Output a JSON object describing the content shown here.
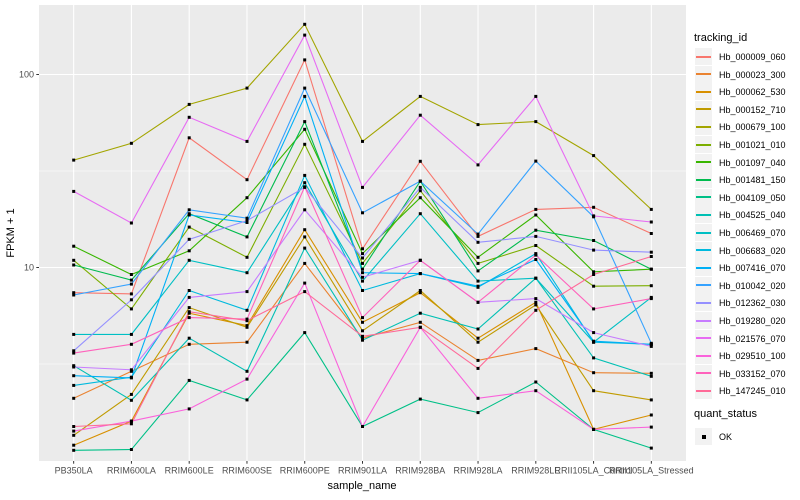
{
  "figure": {
    "description": "ggplot2 line plot of FPKM + 1 per sample for 20 transcripts"
  },
  "style": {
    "panel_bg": "#EBEBEB",
    "grid_major": "#FFFFFF",
    "grid_minor": "#F7F7F7",
    "axis_text_color": "#4D4D4D",
    "axis_title_color": "#000000",
    "tick_color": "#333333",
    "point_color": "#000000",
    "legend_key_bg": "#F2F2F2"
  },
  "legend": {
    "tracking_title": "tracking_id",
    "quant_title": "quant_status",
    "quant_label": "OK"
  },
  "axes": {
    "y_tick_labels": [
      "100",
      "10"
    ],
    "xlabel": "sample_name",
    "ylabel": "FPKM + 1"
  },
  "chart_data": {
    "type": "line",
    "title": "",
    "xlabel": "sample_name",
    "ylabel": "FPKM + 1",
    "yscale": "log10",
    "ylim": [
      1,
      229
    ],
    "y_breaks": [
      10,
      100
    ],
    "y_break_labels": [
      "10",
      "100"
    ],
    "y_minor_breaks": [
      3.162,
      31.62
    ],
    "grid": true,
    "legend_position": "right",
    "legend_title": "tracking_id",
    "point_shape": "square",
    "point_legend": {
      "title": "quant_status",
      "label": "OK"
    },
    "categories": [
      "PB350LA",
      "RRIM600LA",
      "RRIM600LE",
      "RRIM600SE",
      "RRIM600PE",
      "RRIM901LA",
      "RRIM928BA",
      "RRIM928LA",
      "RRIM928LE",
      "RRII105LA_Control",
      "RRII105LA_Stressed"
    ],
    "series": [
      {
        "name": "Hb_000009_060",
        "color": "#F8766D",
        "values": [
          7.4,
          7.3,
          47,
          28.5,
          119,
          12.5,
          35.5,
          14.5,
          20,
          20.5,
          15
        ]
      },
      {
        "name": "Hb_000023_300",
        "color": "#EA8331",
        "values": [
          2.1,
          2.9,
          4.0,
          4.1,
          10.5,
          4.3,
          5.2,
          3.3,
          3.8,
          2.85,
          2.83
        ]
      },
      {
        "name": "Hb_000062_530",
        "color": "#D89000",
        "values": [
          1.2,
          1.6,
          5.8,
          5.0,
          15.7,
          5.2,
          7.4,
          4.3,
          6.6,
          1.45,
          1.72
        ]
      },
      {
        "name": "Hb_000152_710",
        "color": "#C09B00",
        "values": [
          1.35,
          2.2,
          6.2,
          4.9,
          14.4,
          4.7,
          7.6,
          4.1,
          6.4,
          2.3,
          2.06
        ]
      },
      {
        "name": "Hb_000679_100",
        "color": "#A3A500",
        "values": [
          36,
          44,
          70,
          85,
          182,
          45,
          77,
          55,
          57,
          38,
          20
        ]
      },
      {
        "name": "Hb_001021_010",
        "color": "#7CAE00",
        "values": [
          10.9,
          6.1,
          16.2,
          11.3,
          43.5,
          10.5,
          25,
          10.5,
          13,
          8.0,
          8.05
        ]
      },
      {
        "name": "Hb_001097_040",
        "color": "#39B600",
        "values": [
          12.9,
          9.2,
          12.2,
          23,
          52,
          11.8,
          23,
          11.3,
          18.7,
          9.5,
          9.8
        ]
      },
      {
        "name": "Hb_001481_150",
        "color": "#00BB4E",
        "values": [
          10.3,
          8.6,
          19,
          14.4,
          57,
          9.8,
          28,
          9.6,
          15.6,
          13.8,
          9.8
        ]
      },
      {
        "name": "Hb_004109_050",
        "color": "#00C087",
        "values": [
          1.13,
          1.14,
          2.6,
          2.06,
          4.6,
          1.5,
          2.08,
          1.77,
          2.55,
          1.45,
          1.16
        ]
      },
      {
        "name": "Hb_004525_040",
        "color": "#00C0B4",
        "values": [
          3.1,
          2.05,
          4.3,
          2.9,
          12.6,
          4.2,
          5.8,
          4.8,
          8.8,
          3.4,
          2.73
        ]
      },
      {
        "name": "Hb_006469_070",
        "color": "#00BFC4",
        "values": [
          4.5,
          4.5,
          10.9,
          9.4,
          27.5,
          8.5,
          19,
          8.5,
          8.8,
          4.1,
          7.0
        ]
      },
      {
        "name": "Hb_006683_020",
        "color": "#00BADE",
        "values": [
          2.45,
          2.7,
          7.6,
          6.0,
          30,
          7.6,
          9.3,
          7.9,
          11.8,
          4.1,
          4.0
        ]
      },
      {
        "name": "Hb_007416_070",
        "color": "#00B0F6",
        "values": [
          2.75,
          2.68,
          18.7,
          17.1,
          77,
          9.4,
          9.3,
          8.0,
          11.0,
          4.15,
          4.0
        ]
      },
      {
        "name": "Hb_010042_020",
        "color": "#35A2FF",
        "values": [
          7.2,
          8.2,
          19.9,
          18.0,
          85,
          19.2,
          28,
          14.9,
          35.6,
          18.3,
          4.05
        ]
      },
      {
        "name": "Hb_012362_030",
        "color": "#9590FF",
        "values": [
          3.7,
          6.8,
          14,
          17.5,
          26,
          11.2,
          26,
          13.5,
          14.5,
          12.3,
          12.0
        ]
      },
      {
        "name": "Hb_019280_020",
        "color": "#C77CFF",
        "values": [
          3.05,
          2.95,
          7.0,
          7.5,
          19.9,
          8.9,
          10.9,
          6.6,
          6.9,
          4.6,
          3.9
        ]
      },
      {
        "name": "Hb_021576_070",
        "color": "#E76BF3",
        "values": [
          24.8,
          17,
          60,
          45,
          160,
          26,
          61.5,
          34,
          77,
          18.5,
          17.2
        ]
      },
      {
        "name": "Hb_029510_100",
        "color": "#FA62DB",
        "values": [
          1.42,
          1.6,
          1.85,
          2.64,
          8.3,
          1.5,
          4.9,
          2.1,
          2.3,
          1.45,
          1.49
        ]
      },
      {
        "name": "Hb_033152_070",
        "color": "#FF62BC",
        "values": [
          3.6,
          4.0,
          5.5,
          5.4,
          26.2,
          5.5,
          10.9,
          6.6,
          11.6,
          6.1,
          6.9
        ]
      },
      {
        "name": "Hb_147245_010",
        "color": "#FF6A98",
        "values": [
          1.5,
          1.55,
          5.9,
          5.3,
          7.5,
          4.4,
          4.9,
          3.0,
          6.0,
          9.2,
          11.4
        ]
      }
    ]
  }
}
